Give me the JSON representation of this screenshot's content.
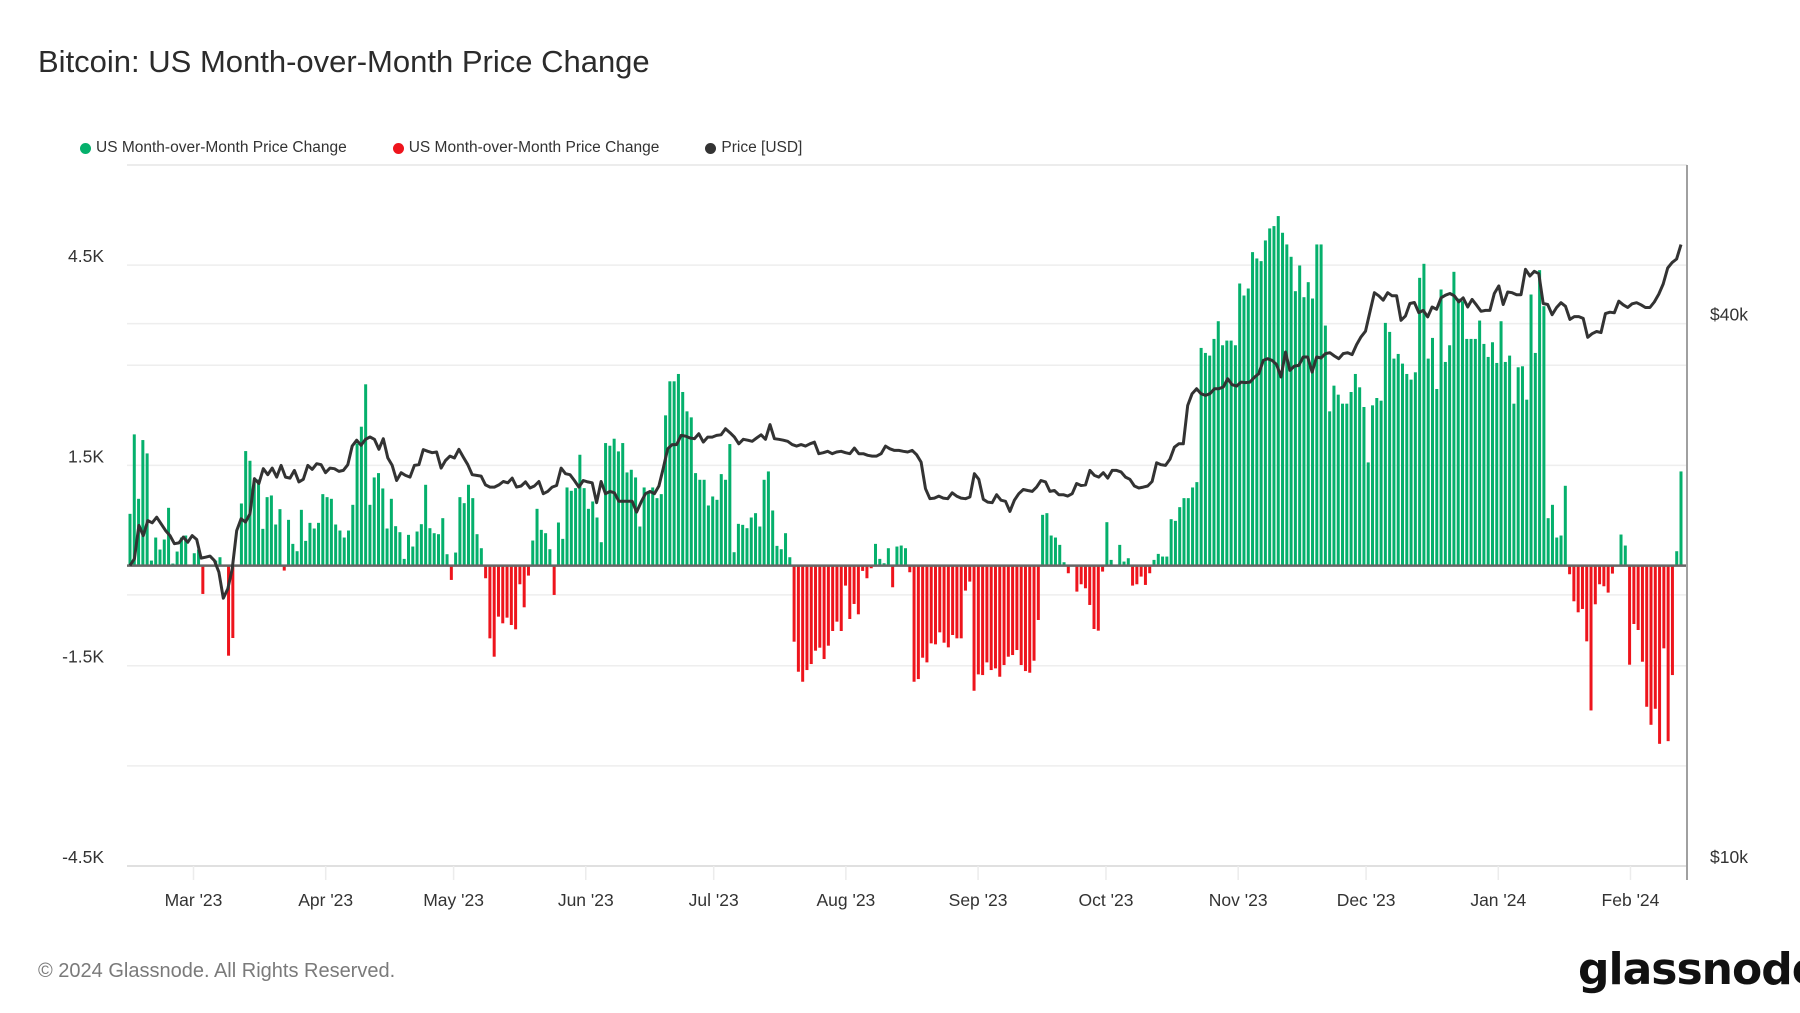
{
  "title": "Bitcoin: US Month-over-Month Price Change",
  "footer": "© 2024 Glassnode. All Rights Reserved.",
  "logo": "glassnode",
  "colors": {
    "positive": "#05b06c",
    "negative": "#ee141c",
    "price": "#333333",
    "zero_line": "#666666",
    "grid": "#eeeeee"
  },
  "legend": [
    {
      "label": "US Month-over-Month Price Change",
      "color": "#05b06c"
    },
    {
      "label": "US Month-over-Month Price Change",
      "color": "#ee141c"
    },
    {
      "label": "Price [USD]",
      "color": "#333333"
    }
  ],
  "chart_data": {
    "type": "bar+line",
    "title": "Bitcoin: US Month-over-Month Price Change",
    "x_range": [
      "2023-02-13",
      "2024-02-14"
    ],
    "x_ticks": [
      "Mar '23",
      "Apr '23",
      "May '23",
      "Jun '23",
      "Jul '23",
      "Aug '23",
      "Sep '23",
      "Oct '23",
      "Nov '23",
      "Dec '23",
      "Jan '24",
      "Feb '24"
    ],
    "left_axis": {
      "ylim": [
        -4500,
        6000
      ],
      "ticks": [
        {
          "value": 4500,
          "label": "4.5K"
        },
        {
          "value": 1500,
          "label": "1.5K"
        },
        {
          "value": -1500,
          "label": "-1.5K"
        },
        {
          "value": -4500,
          "label": "-4.5K"
        }
      ]
    },
    "right_axis": {
      "scale": "log",
      "ylim": [
        10000,
        60000
      ],
      "ticks": [
        {
          "value": 40000,
          "label": "$40k"
        },
        {
          "value": 10000,
          "label": "$10k"
        }
      ]
    },
    "grid": true,
    "legend_position": "top-left",
    "series": [
      {
        "name": "US Month-over-Month Price Change",
        "type": "bar",
        "frequency": "daily",
        "color_rule": "green if positive, red if negative",
        "values": [
          775,
          1965,
          1000,
          1880,
          1680,
          75,
          420,
          240,
          390,
          865,
          30,
          210,
          420,
          450,
          0,
          185,
          240,
          -425,
          0,
          0,
          75,
          125,
          0,
          -1350,
          -1085,
          0,
          930,
          1715,
          1570,
          1275,
          1290,
          550,
          1025,
          1050,
          615,
          845,
          -75,
          685,
          325,
          215,
          835,
          370,
          640,
          555,
          640,
          1070,
          1025,
          1000,
          615,
          525,
          420,
          525,
          910,
          1830,
          2080,
          2715,
          910,
          1320,
          1385,
          1155,
          555,
          1000,
          590,
          500,
          100,
          460,
          285,
          510,
          620,
          1210,
          560,
          485,
          470,
          710,
          170,
          -215,
          195,
          1025,
          935,
          1210,
          1010,
          470,
          260,
          -190,
          -1090,
          -1365,
          -765,
          -865,
          -780,
          -890,
          -955,
          -280,
          -625,
          -150,
          375,
          850,
          535,
          485,
          245,
          -440,
          645,
          400,
          1170,
          1120,
          1160,
          1660,
          1160,
          850,
          960,
          720,
          350,
          1835,
          1795,
          1900,
          1710,
          1835,
          1395,
          1435,
          1320,
          585,
          1170,
          1110,
          1170,
          1010,
          1070,
          2250,
          2760,
          2760,
          2870,
          2600,
          2310,
          2220,
          1385,
          1285,
          1285,
          900,
          1035,
          985,
          1370,
          1285,
          1820,
          200,
          625,
          610,
          560,
          720,
          785,
          585,
          1285,
          1410,
          825,
          295,
          245,
          485,
          125,
          -1140,
          -1590,
          -1740,
          -1565,
          -1475,
          -1275,
          -1230,
          -1400,
          -1200,
          -980,
          -840,
          -980,
          -300,
          -800,
          -575,
          -730,
          -80,
          -190,
          -40,
          325,
          100,
          35,
          260,
          -325,
          285,
          300,
          260,
          -100,
          -1740,
          -1700,
          -1380,
          -1450,
          -1165,
          -1180,
          -1000,
          -1155,
          -1225,
          -1040,
          -1090,
          -1090,
          -375,
          -240,
          -1875,
          -1630,
          -1640,
          -1450,
          -1565,
          -1540,
          -1665,
          -1490,
          -1365,
          -1340,
          -1265,
          -1490,
          -1580,
          -1605,
          -1425,
          -815,
          760,
          785,
          450,
          420,
          310,
          50,
          -115,
          0,
          -390,
          -280,
          -340,
          -590,
          -950,
          -975,
          -90,
          650,
          85,
          0,
          310,
          60,
          110,
          -300,
          -280,
          -165,
          -290,
          -115,
          85,
          175,
          135,
          135,
          695,
          670,
          875,
          1010,
          1010,
          1170,
          1250,
          3260,
          3185,
          3145,
          3395,
          3660,
          3300,
          3370,
          3370,
          3300,
          4225,
          4045,
          4150,
          4695,
          4600,
          4560,
          4870,
          5050,
          5085,
          5235,
          4985,
          4810,
          4625,
          4110,
          4495,
          4020,
          4245,
          4000,
          4810,
          4810,
          3595,
          2310,
          2695,
          2560,
          2425,
          2425,
          2600,
          2870,
          2670,
          2375,
          1545,
          2400,
          2510,
          2470,
          3635,
          3500,
          3100,
          3170,
          3025,
          2870,
          2785,
          2895,
          4310,
          4520,
          3100,
          3410,
          2645,
          4135,
          3050,
          3300,
          4400,
          4000,
          3960,
          3395,
          3395,
          3395,
          3670,
          3320,
          3125,
          3345,
          3035,
          3660,
          3050,
          3145,
          2425,
          2970,
          2985,
          2485,
          4060,
          3185,
          4425,
          3885,
          710,
          910,
          420,
          450,
          1195,
          -130,
          -535,
          -700,
          -650,
          -1135,
          -2170,
          -580,
          -280,
          -310,
          -405,
          -120,
          15,
          465,
          300,
          -1485,
          -875,
          -965,
          -1440,
          -2115,
          -2385,
          -2145,
          -2670,
          -1240,
          -2630,
          -1640,
          215,
          1410
        ]
      },
      {
        "name": "Price [USD]",
        "type": "line",
        "axis": "right",
        "values": [
          21550,
          21930,
          23880,
          23270,
          24180,
          24040,
          24390,
          23980,
          23570,
          23270,
          22790,
          22840,
          23180,
          22880,
          23270,
          23040,
          21970,
          22020,
          22080,
          21830,
          21190,
          19830,
          20310,
          21370,
          23570,
          24290,
          24090,
          24600,
          26920,
          26580,
          27610,
          27190,
          27650,
          27020,
          27840,
          27020,
          26950,
          27490,
          26690,
          26870,
          27840,
          27560,
          27960,
          27890,
          27330,
          27650,
          27610,
          27420,
          27490,
          27890,
          29260,
          29690,
          29310,
          29760,
          29940,
          29760,
          29010,
          29810,
          28380,
          27840,
          26790,
          27330,
          27140,
          27020,
          27840,
          27890,
          28990,
          28860,
          28760,
          28810,
          27650,
          28190,
          28510,
          28370,
          29010,
          28440,
          27890,
          27190,
          27140,
          27090,
          26490,
          26340,
          26340,
          26490,
          26720,
          26630,
          26950,
          26340,
          26410,
          26690,
          26280,
          26410,
          26720,
          25900,
          26050,
          26340,
          26450,
          27650,
          27260,
          27190,
          26790,
          26340,
          26790,
          26690,
          26630,
          25310,
          26720,
          25900,
          26050,
          25960,
          25400,
          25400,
          25400,
          25400,
          24710,
          25350,
          25900,
          26050,
          25900,
          26410,
          27650,
          29050,
          29360,
          29360,
          30060,
          30010,
          29860,
          29810,
          30190,
          29550,
          29930,
          29930,
          30060,
          30110,
          30580,
          30270,
          29930,
          29420,
          29760,
          29690,
          29610,
          29860,
          30110,
          29760,
          30900,
          29810,
          29760,
          29690,
          29610,
          29360,
          29250,
          29360,
          29250,
          29420,
          29550,
          28690,
          28760,
          28860,
          28690,
          28810,
          28860,
          28760,
          28690,
          29100,
          28690,
          28690,
          28570,
          28510,
          28510,
          28690,
          29250,
          29050,
          28930,
          28930,
          28860,
          28810,
          28930,
          28610,
          28080,
          26230,
          25570,
          25610,
          25740,
          25610,
          25570,
          25960,
          25740,
          25610,
          25570,
          25680,
          27260,
          26870,
          25530,
          25350,
          25310,
          25830,
          25470,
          25400,
          24750,
          25470,
          25900,
          26180,
          26110,
          26050,
          26340,
          26790,
          26690,
          26050,
          26110,
          25830,
          25830,
          25740,
          25900,
          26580,
          26450,
          26490,
          27490,
          27140,
          27020,
          27330,
          26950,
          27490,
          27490,
          27380,
          27020,
          26870,
          26410,
          26280,
          26340,
          26410,
          26720,
          28030,
          27890,
          27840,
          28280,
          29170,
          29420,
          29420,
          32450,
          33440,
          33870,
          33440,
          33300,
          33440,
          33870,
          33870,
          34020,
          34750,
          34220,
          34100,
          34450,
          34400,
          34450,
          34870,
          35200,
          36410,
          36570,
          36410,
          36020,
          34900,
          37200,
          35490,
          35890,
          35950,
          36730,
          36730,
          35340,
          36730,
          36640,
          37050,
          37140,
          36820,
          36570,
          37050,
          37140,
          36960,
          37910,
          38670,
          39230,
          41210,
          43290,
          42950,
          42470,
          43290,
          42950,
          42950,
          40340,
          40800,
          42110,
          42220,
          41140,
          41380,
          40690,
          41740,
          41490,
          42720,
          43020,
          43200,
          42950,
          42280,
          42720,
          41740,
          42560,
          41930,
          41280,
          41380,
          41380,
          43200,
          44050,
          42010,
          43370,
          43290,
          43070,
          43070,
          45960,
          45180,
          45720,
          45450,
          42110,
          42010,
          40920,
          41680,
          42200,
          41810,
          40430,
          40730,
          40730,
          40540,
          38630,
          38980,
          39200,
          39090,
          41040,
          41190,
          41120,
          42360,
          41970,
          41680,
          42080,
          42200,
          41970,
          41680,
          41680,
          42270,
          43140,
          44270,
          46110,
          46750,
          47180,
          48950
        ]
      }
    ]
  }
}
